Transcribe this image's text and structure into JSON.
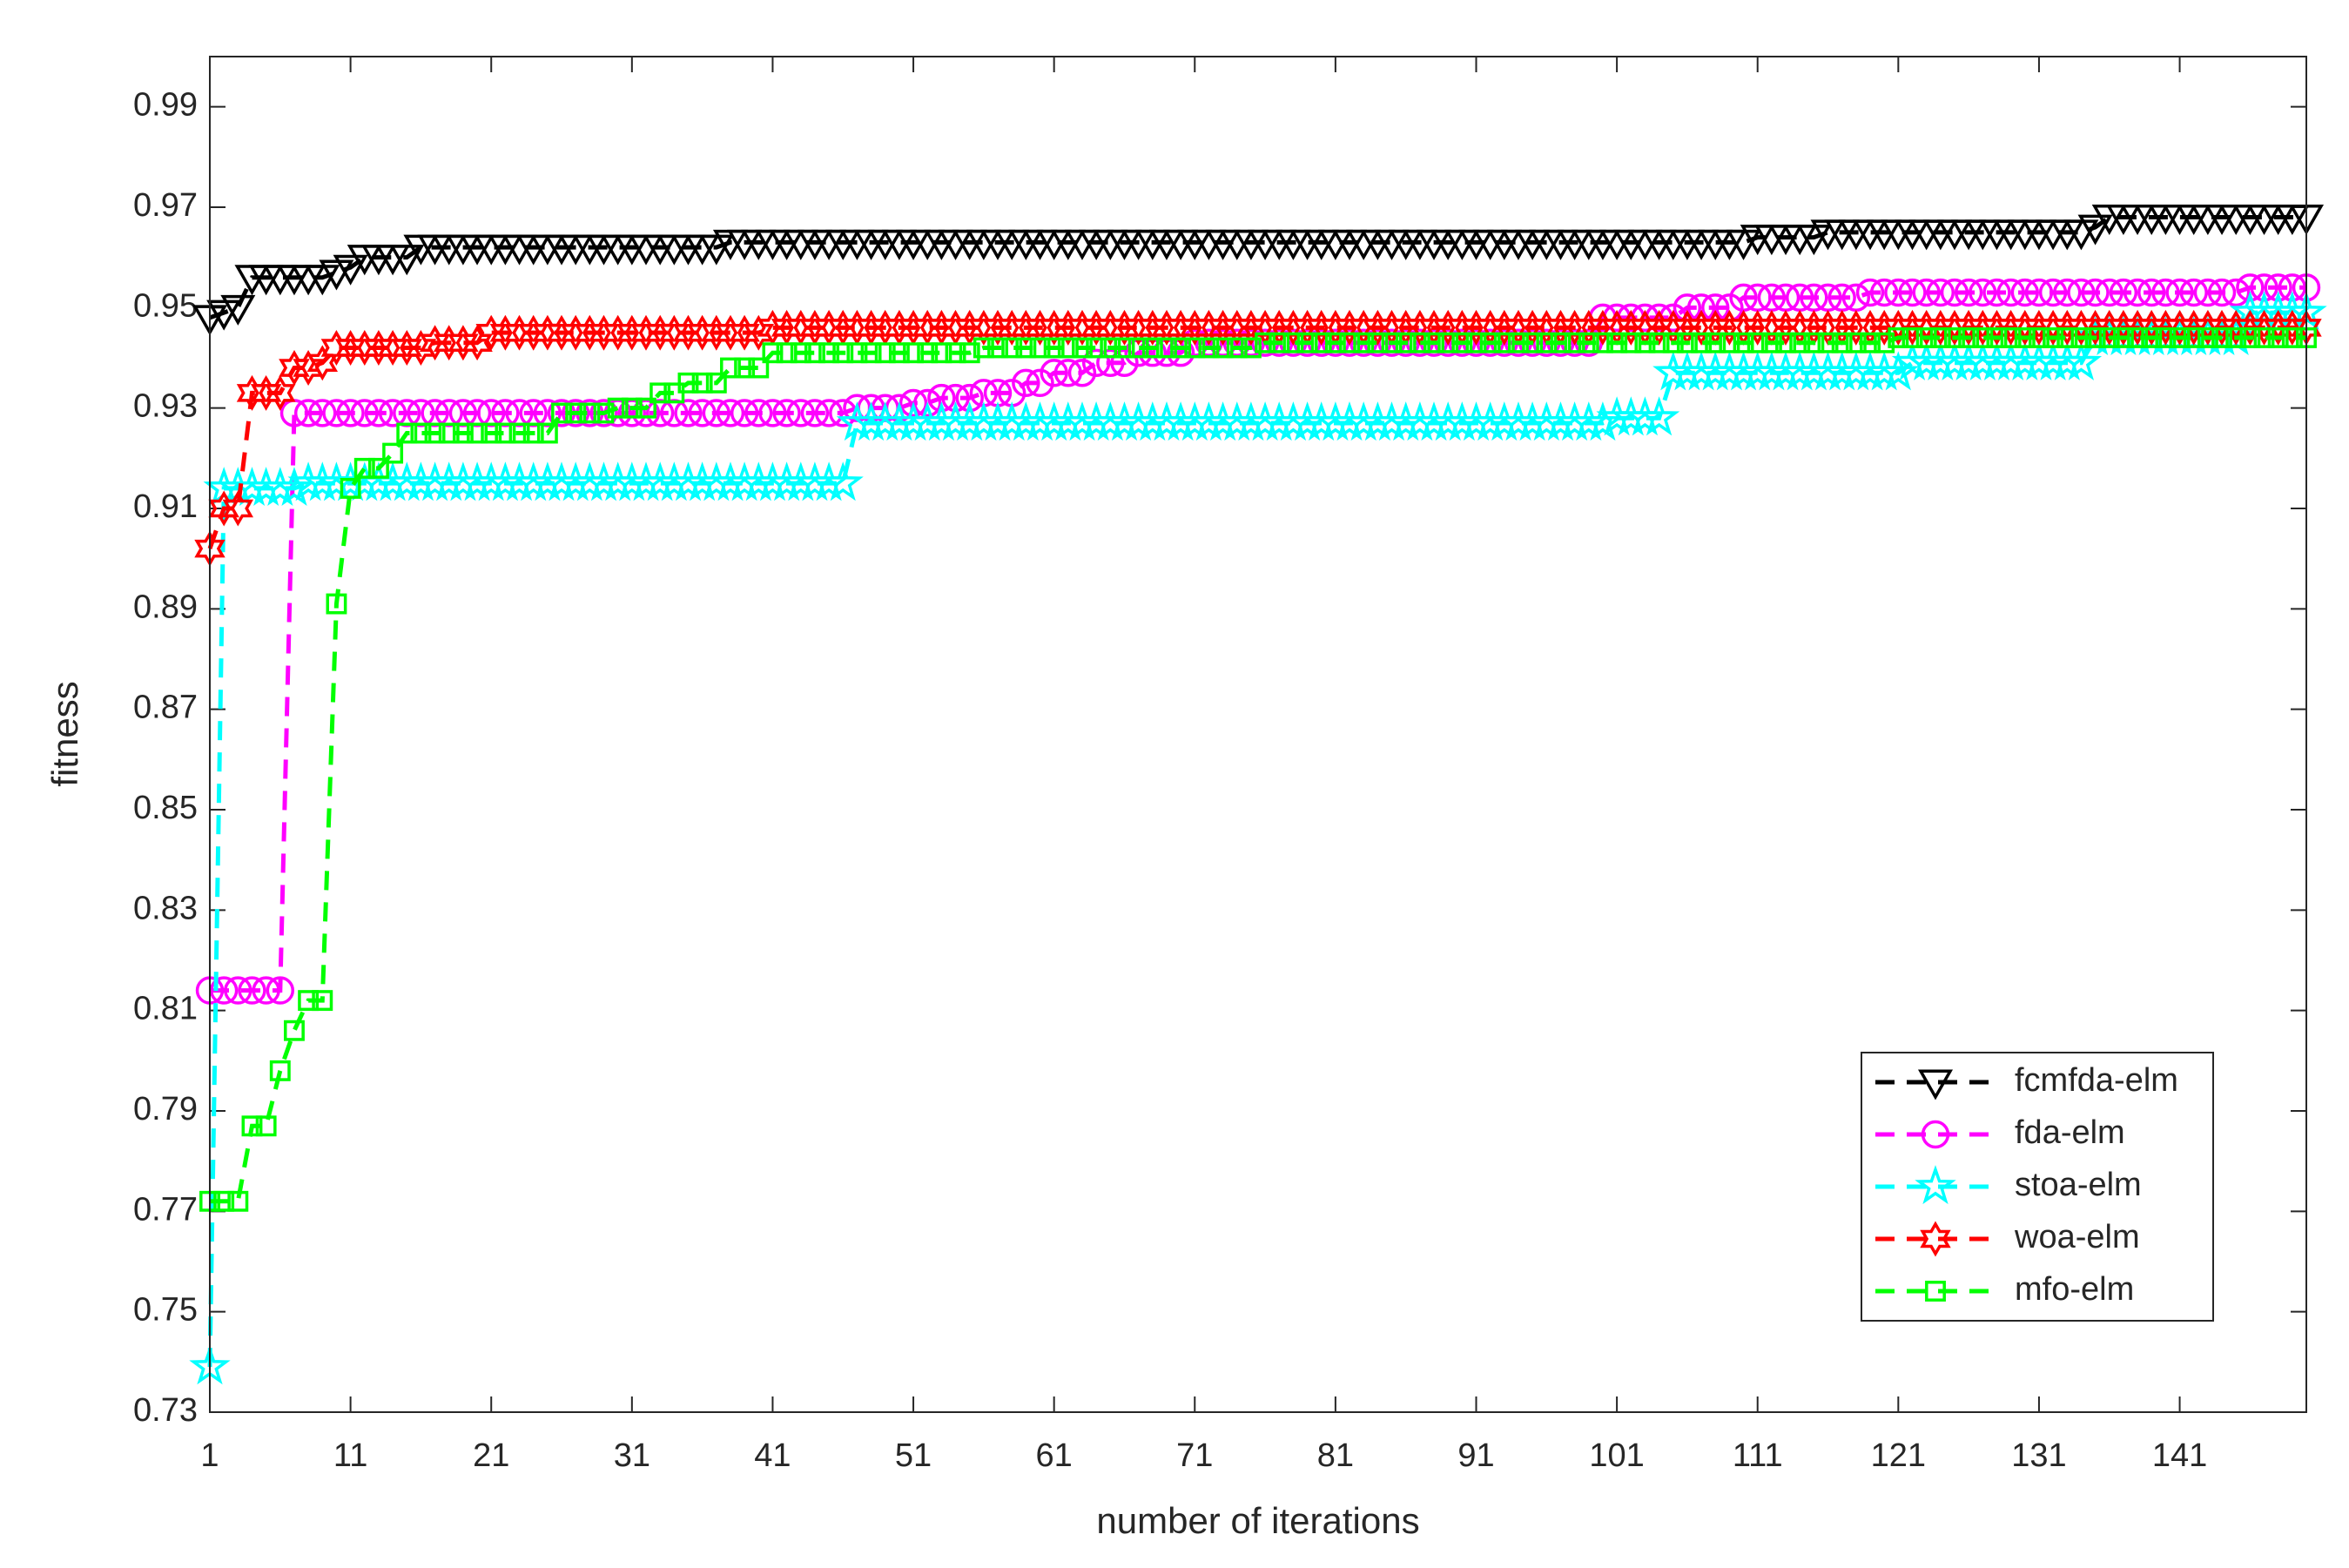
{
  "chart_data": {
    "type": "line",
    "x_label": "number of iterations",
    "y_label": "fitness",
    "x": [
      1,
      2,
      3,
      4,
      5,
      6,
      7,
      8,
      9,
      10,
      11,
      12,
      13,
      14,
      15,
      16,
      17,
      18,
      19,
      20,
      21,
      22,
      23,
      24,
      25,
      26,
      27,
      28,
      29,
      30,
      31,
      32,
      33,
      34,
      35,
      36,
      37,
      38,
      39,
      40,
      41,
      42,
      43,
      44,
      45,
      46,
      47,
      48,
      49,
      50,
      51,
      52,
      53,
      54,
      55,
      56,
      57,
      58,
      59,
      60,
      61,
      62,
      63,
      64,
      65,
      66,
      67,
      68,
      69,
      70,
      71,
      72,
      73,
      74,
      75,
      76,
      77,
      78,
      79,
      80,
      81,
      82,
      83,
      84,
      85,
      86,
      87,
      88,
      89,
      90,
      91,
      92,
      93,
      94,
      95,
      96,
      97,
      98,
      99,
      100,
      101,
      102,
      103,
      104,
      105,
      106,
      107,
      108,
      109,
      110,
      111,
      112,
      113,
      114,
      115,
      116,
      117,
      118,
      119,
      120,
      121,
      122,
      123,
      124,
      125,
      126,
      127,
      128,
      129,
      130,
      131,
      132,
      133,
      134,
      135,
      136,
      137,
      138,
      139,
      140,
      141,
      142,
      143,
      144,
      145,
      146,
      147,
      148,
      149,
      150
    ],
    "series": [
      {
        "name": "fcmfda-elm",
        "color": "#000000",
        "marker": "triangle-down",
        "values": [
          0.948,
          0.949,
          0.95,
          0.956,
          0.956,
          0.956,
          0.956,
          0.956,
          0.956,
          0.957,
          0.958,
          0.96,
          0.96,
          0.96,
          0.96,
          0.962,
          0.962,
          0.962,
          0.962,
          0.962,
          0.962,
          0.962,
          0.962,
          0.962,
          0.962,
          0.962,
          0.962,
          0.962,
          0.962,
          0.962,
          0.962,
          0.962,
          0.962,
          0.962,
          0.962,
          0.962,
          0.962,
          0.963,
          0.963,
          0.963,
          0.963,
          0.963,
          0.963,
          0.963,
          0.963,
          0.963,
          0.963,
          0.963,
          0.963,
          0.963,
          0.963,
          0.963,
          0.963,
          0.963,
          0.963,
          0.963,
          0.963,
          0.963,
          0.963,
          0.963,
          0.963,
          0.963,
          0.963,
          0.963,
          0.963,
          0.963,
          0.963,
          0.963,
          0.963,
          0.963,
          0.963,
          0.963,
          0.963,
          0.963,
          0.963,
          0.963,
          0.963,
          0.963,
          0.963,
          0.963,
          0.963,
          0.963,
          0.963,
          0.963,
          0.963,
          0.963,
          0.963,
          0.963,
          0.963,
          0.963,
          0.963,
          0.963,
          0.963,
          0.963,
          0.963,
          0.963,
          0.963,
          0.963,
          0.963,
          0.963,
          0.963,
          0.963,
          0.963,
          0.963,
          0.963,
          0.963,
          0.963,
          0.963,
          0.963,
          0.963,
          0.964,
          0.964,
          0.964,
          0.964,
          0.964,
          0.965,
          0.965,
          0.965,
          0.965,
          0.965,
          0.965,
          0.965,
          0.965,
          0.965,
          0.965,
          0.965,
          0.965,
          0.965,
          0.965,
          0.965,
          0.965,
          0.965,
          0.965,
          0.965,
          0.966,
          0.968,
          0.968,
          0.968,
          0.968,
          0.968,
          0.968,
          0.968,
          0.968,
          0.968,
          0.968,
          0.968,
          0.968,
          0.968,
          0.968,
          0.968
        ]
      },
      {
        "name": "fda-elm",
        "color": "#ff00ff",
        "marker": "circle",
        "values": [
          0.814,
          0.814,
          0.814,
          0.814,
          0.814,
          0.814,
          0.929,
          0.929,
          0.929,
          0.929,
          0.929,
          0.929,
          0.929,
          0.929,
          0.929,
          0.929,
          0.929,
          0.929,
          0.929,
          0.929,
          0.929,
          0.929,
          0.929,
          0.929,
          0.929,
          0.929,
          0.929,
          0.929,
          0.929,
          0.929,
          0.929,
          0.929,
          0.929,
          0.929,
          0.929,
          0.929,
          0.929,
          0.929,
          0.929,
          0.929,
          0.929,
          0.929,
          0.929,
          0.929,
          0.929,
          0.929,
          0.93,
          0.93,
          0.93,
          0.93,
          0.931,
          0.931,
          0.932,
          0.932,
          0.932,
          0.933,
          0.933,
          0.933,
          0.935,
          0.935,
          0.937,
          0.937,
          0.937,
          0.939,
          0.939,
          0.939,
          0.941,
          0.941,
          0.941,
          0.941,
          0.943,
          0.943,
          0.943,
          0.943,
          0.943,
          0.943,
          0.943,
          0.943,
          0.943,
          0.943,
          0.943,
          0.943,
          0.943,
          0.943,
          0.943,
          0.943,
          0.943,
          0.943,
          0.943,
          0.943,
          0.943,
          0.943,
          0.943,
          0.943,
          0.943,
          0.943,
          0.943,
          0.943,
          0.943,
          0.948,
          0.948,
          0.948,
          0.948,
          0.948,
          0.948,
          0.95,
          0.95,
          0.95,
          0.95,
          0.952,
          0.952,
          0.952,
          0.952,
          0.952,
          0.952,
          0.952,
          0.952,
          0.952,
          0.953,
          0.953,
          0.953,
          0.953,
          0.953,
          0.953,
          0.953,
          0.953,
          0.953,
          0.953,
          0.953,
          0.953,
          0.953,
          0.953,
          0.953,
          0.953,
          0.953,
          0.953,
          0.953,
          0.953,
          0.953,
          0.953,
          0.953,
          0.953,
          0.953,
          0.953,
          0.953,
          0.954,
          0.954,
          0.954,
          0.954,
          0.954
        ]
      },
      {
        "name": "stoa-elm",
        "color": "#00ffff",
        "marker": "star",
        "values": [
          0.739,
          0.914,
          0.914,
          0.914,
          0.914,
          0.914,
          0.914,
          0.915,
          0.915,
          0.915,
          0.915,
          0.915,
          0.915,
          0.915,
          0.915,
          0.915,
          0.915,
          0.915,
          0.915,
          0.915,
          0.915,
          0.915,
          0.915,
          0.915,
          0.915,
          0.915,
          0.915,
          0.915,
          0.915,
          0.915,
          0.915,
          0.915,
          0.915,
          0.915,
          0.915,
          0.915,
          0.915,
          0.915,
          0.915,
          0.915,
          0.915,
          0.915,
          0.915,
          0.915,
          0.915,
          0.915,
          0.927,
          0.927,
          0.927,
          0.927,
          0.927,
          0.927,
          0.927,
          0.927,
          0.927,
          0.927,
          0.927,
          0.927,
          0.927,
          0.927,
          0.927,
          0.927,
          0.927,
          0.927,
          0.927,
          0.927,
          0.927,
          0.927,
          0.927,
          0.927,
          0.927,
          0.927,
          0.927,
          0.927,
          0.927,
          0.927,
          0.927,
          0.927,
          0.927,
          0.927,
          0.927,
          0.927,
          0.927,
          0.927,
          0.927,
          0.927,
          0.927,
          0.927,
          0.927,
          0.927,
          0.927,
          0.927,
          0.927,
          0.927,
          0.927,
          0.927,
          0.927,
          0.927,
          0.927,
          0.927,
          0.928,
          0.928,
          0.928,
          0.928,
          0.937,
          0.937,
          0.937,
          0.937,
          0.937,
          0.937,
          0.937,
          0.937,
          0.937,
          0.937,
          0.937,
          0.937,
          0.937,
          0.937,
          0.937,
          0.937,
          0.937,
          0.939,
          0.939,
          0.939,
          0.939,
          0.939,
          0.939,
          0.939,
          0.939,
          0.939,
          0.939,
          0.939,
          0.939,
          0.939,
          0.944,
          0.944,
          0.944,
          0.944,
          0.944,
          0.944,
          0.944,
          0.944,
          0.944,
          0.944,
          0.944,
          0.949,
          0.949,
          0.949,
          0.949,
          0.949
        ]
      },
      {
        "name": "woa-elm",
        "color": "#ff0000",
        "marker": "hexagram",
        "values": [
          0.902,
          0.91,
          0.91,
          0.933,
          0.933,
          0.933,
          0.938,
          0.938,
          0.939,
          0.942,
          0.942,
          0.942,
          0.942,
          0.942,
          0.942,
          0.942,
          0.943,
          0.943,
          0.943,
          0.943,
          0.945,
          0.945,
          0.945,
          0.945,
          0.945,
          0.945,
          0.945,
          0.945,
          0.945,
          0.945,
          0.945,
          0.945,
          0.945,
          0.945,
          0.945,
          0.945,
          0.945,
          0.945,
          0.945,
          0.945,
          0.946,
          0.946,
          0.946,
          0.946,
          0.946,
          0.946,
          0.946,
          0.946,
          0.946,
          0.946,
          0.946,
          0.946,
          0.946,
          0.946,
          0.946,
          0.946,
          0.946,
          0.946,
          0.946,
          0.946,
          0.946,
          0.946,
          0.946,
          0.946,
          0.946,
          0.946,
          0.946,
          0.946,
          0.946,
          0.946,
          0.946,
          0.946,
          0.946,
          0.946,
          0.946,
          0.946,
          0.946,
          0.946,
          0.946,
          0.946,
          0.946,
          0.946,
          0.946,
          0.946,
          0.946,
          0.946,
          0.946,
          0.946,
          0.946,
          0.946,
          0.946,
          0.946,
          0.946,
          0.946,
          0.946,
          0.946,
          0.946,
          0.946,
          0.946,
          0.946,
          0.946,
          0.946,
          0.946,
          0.946,
          0.946,
          0.946,
          0.946,
          0.946,
          0.946,
          0.946,
          0.946,
          0.946,
          0.946,
          0.946,
          0.946,
          0.946,
          0.946,
          0.946,
          0.946,
          0.946,
          0.946,
          0.946,
          0.946,
          0.946,
          0.946,
          0.946,
          0.946,
          0.946,
          0.946,
          0.946,
          0.946,
          0.946,
          0.946,
          0.946,
          0.946,
          0.946,
          0.946,
          0.946,
          0.946,
          0.946,
          0.946,
          0.946,
          0.946,
          0.946,
          0.946,
          0.946,
          0.946,
          0.946,
          0.946,
          0.946
        ]
      },
      {
        "name": "mfo-elm",
        "color": "#00ff00",
        "marker": "square",
        "values": [
          0.772,
          0.772,
          0.772,
          0.787,
          0.787,
          0.798,
          0.806,
          0.812,
          0.812,
          0.891,
          0.914,
          0.918,
          0.918,
          0.921,
          0.925,
          0.925,
          0.925,
          0.925,
          0.925,
          0.925,
          0.925,
          0.925,
          0.925,
          0.925,
          0.925,
          0.929,
          0.929,
          0.929,
          0.929,
          0.93,
          0.93,
          0.93,
          0.933,
          0.933,
          0.935,
          0.935,
          0.935,
          0.938,
          0.938,
          0.938,
          0.941,
          0.941,
          0.941,
          0.941,
          0.941,
          0.941,
          0.941,
          0.941,
          0.941,
          0.941,
          0.941,
          0.941,
          0.941,
          0.941,
          0.941,
          0.942,
          0.942,
          0.942,
          0.942,
          0.942,
          0.942,
          0.942,
          0.942,
          0.942,
          0.942,
          0.942,
          0.942,
          0.942,
          0.942,
          0.942,
          0.942,
          0.942,
          0.942,
          0.942,
          0.942,
          0.943,
          0.943,
          0.943,
          0.943,
          0.943,
          0.943,
          0.943,
          0.943,
          0.943,
          0.943,
          0.943,
          0.943,
          0.943,
          0.943,
          0.943,
          0.943,
          0.943,
          0.943,
          0.943,
          0.943,
          0.943,
          0.943,
          0.943,
          0.943,
          0.943,
          0.943,
          0.943,
          0.943,
          0.943,
          0.943,
          0.943,
          0.943,
          0.943,
          0.943,
          0.943,
          0.943,
          0.943,
          0.943,
          0.943,
          0.943,
          0.943,
          0.943,
          0.943,
          0.943,
          0.943,
          0.944,
          0.944,
          0.944,
          0.944,
          0.944,
          0.944,
          0.944,
          0.944,
          0.944,
          0.944,
          0.944,
          0.944,
          0.944,
          0.944,
          0.944,
          0.944,
          0.944,
          0.944,
          0.944,
          0.944,
          0.944,
          0.944,
          0.944,
          0.944,
          0.944,
          0.944,
          0.944,
          0.944,
          0.944,
          0.944
        ]
      }
    ],
    "xlim": [
      1,
      150
    ],
    "xticks": [
      1,
      11,
      21,
      31,
      41,
      51,
      61,
      71,
      81,
      91,
      101,
      111,
      121,
      131,
      141
    ],
    "ylim": [
      0.73,
      1.0
    ],
    "yticks": [
      0.73,
      0.75,
      0.77,
      0.79,
      0.81,
      0.83,
      0.85,
      0.87,
      0.89,
      0.91,
      0.93,
      0.95,
      0.97,
      0.99
    ],
    "grid": false,
    "legend_loc": "lower right"
  }
}
